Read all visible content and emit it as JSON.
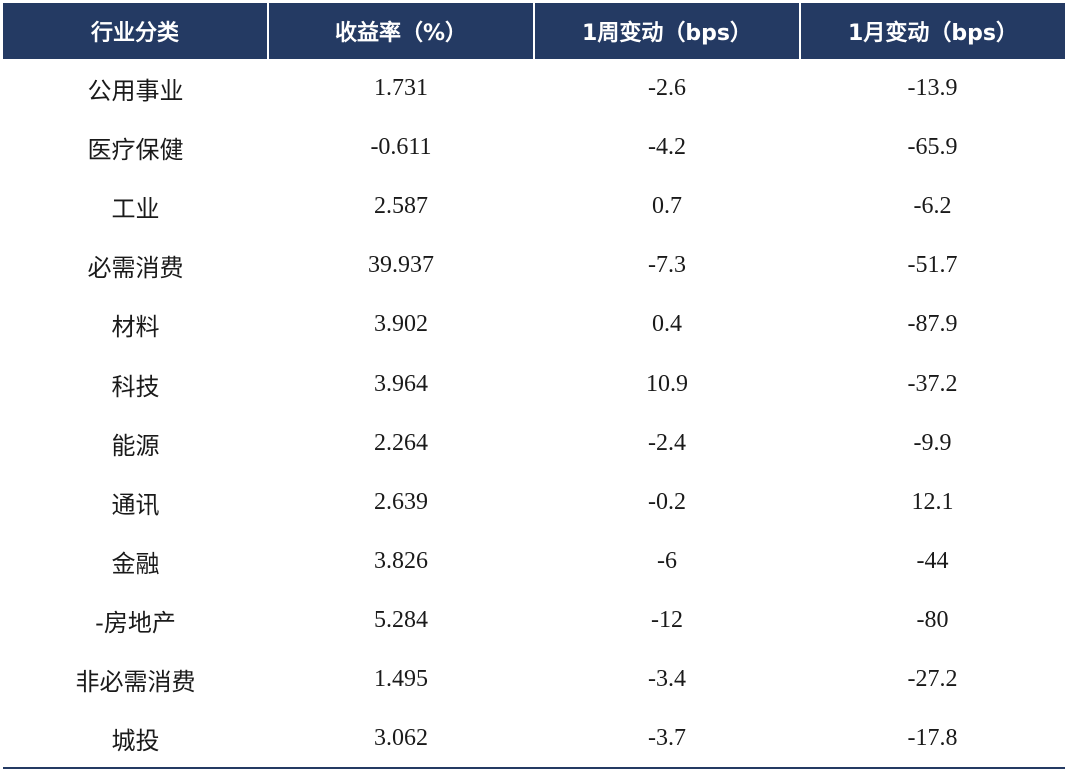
{
  "table": {
    "headers": [
      "行业分类",
      "收益率（%）",
      "1周变动（bps）",
      "1月变动（bps）"
    ],
    "rows": [
      {
        "sector": "公用事业",
        "yield": "1.731",
        "w1": "-2.6",
        "m1": "-13.9"
      },
      {
        "sector": "医疗保健",
        "yield": "-0.611",
        "w1": "-4.2",
        "m1": "-65.9"
      },
      {
        "sector": "工业",
        "yield": "2.587",
        "w1": "0.7",
        "m1": "-6.2"
      },
      {
        "sector": "必需消费",
        "yield": "39.937",
        "w1": "-7.3",
        "m1": "-51.7"
      },
      {
        "sector": "材料",
        "yield": "3.902",
        "w1": "0.4",
        "m1": "-87.9"
      },
      {
        "sector": "科技",
        "yield": "3.964",
        "w1": "10.9",
        "m1": "-37.2"
      },
      {
        "sector": "能源",
        "yield": "2.264",
        "w1": "-2.4",
        "m1": "-9.9"
      },
      {
        "sector": "通讯",
        "yield": "2.639",
        "w1": "-0.2",
        "m1": "12.1"
      },
      {
        "sector": "金融",
        "yield": "3.826",
        "w1": "-6",
        "m1": "-44"
      },
      {
        "sector": "-房地产",
        "yield": "5.284",
        "w1": "-12",
        "m1": "-80"
      },
      {
        "sector": "非必需消费",
        "yield": "1.495",
        "w1": "-3.4",
        "m1": "-27.2"
      },
      {
        "sector": "城投",
        "yield": "3.062",
        "w1": "-3.7",
        "m1": "-17.8"
      }
    ]
  },
  "colors": {
    "header_bg": "#243a63",
    "header_text": "#ffffff",
    "body_text": "#1a1a1a"
  }
}
